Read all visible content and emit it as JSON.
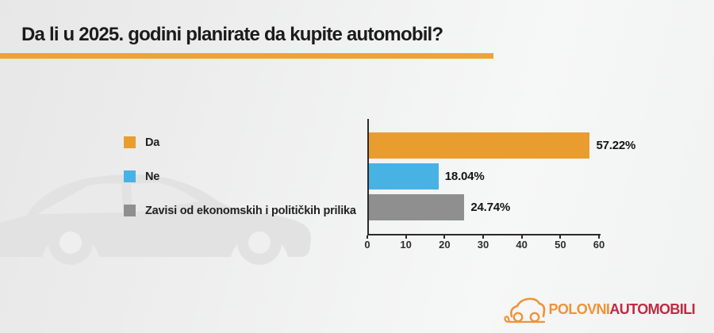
{
  "header": {
    "title": "Da li u 2025. godini planirate da kupite automobil?",
    "underline_color": "#f0a237"
  },
  "legend": {
    "items": [
      {
        "label": "Da",
        "color": "#ea9d2f"
      },
      {
        "label": "Ne",
        "color": "#49b2e5"
      },
      {
        "label": "Zavisi od ekonomskih i političkih prilika",
        "color": "#8f8f8f"
      }
    ]
  },
  "chart_data": {
    "type": "bar",
    "orientation": "horizontal",
    "title": "Da li u 2025. godini planirate da kupite automobil?",
    "categories": [
      "Da",
      "Ne",
      "Zavisi od ekonomskih i političkih prilika"
    ],
    "values": [
      57.22,
      18.04,
      24.74
    ],
    "value_labels": [
      "57.22%",
      "18.04%",
      "24.74%"
    ],
    "colors": [
      "#ea9d2f",
      "#49b2e5",
      "#8f8f8f"
    ],
    "xlim": [
      0,
      60
    ],
    "xticks": [
      0,
      10,
      20,
      30,
      40,
      50,
      60
    ],
    "grid": false,
    "legend_position": "left",
    "axis_color": "#2a2a2a"
  },
  "logo": {
    "part1": "POLOVNI",
    "part2": "AUTOMOBILI",
    "part1_color": "#ef9338",
    "part2_color": "#c02a42",
    "icon_color": "#ef9338"
  },
  "watermark": {
    "name": "car-silhouette",
    "body_color": "#e2e2e2",
    "window_color": "#eaeaea",
    "hole_color": "#efefef"
  }
}
